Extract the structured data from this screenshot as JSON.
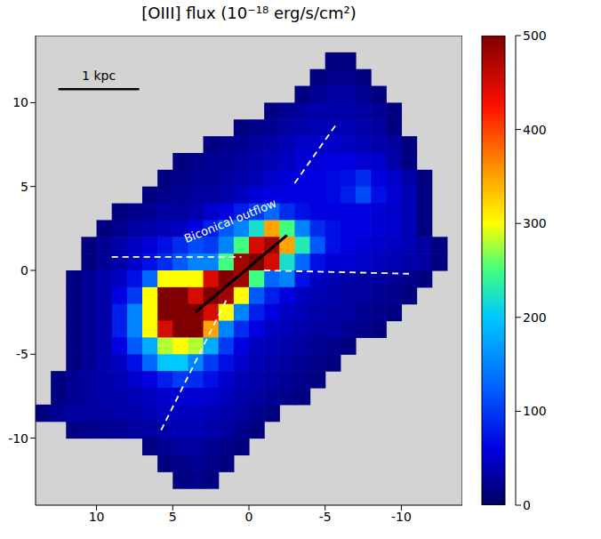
{
  "chart_data": {
    "type": "heatmap",
    "title": "[OIII] flux  (10⁻¹⁸ erg/s/cm²)",
    "xlim": [
      14,
      -14
    ],
    "xticks": [
      10,
      5,
      0,
      -5,
      -10
    ],
    "ylim": [
      -14,
      14
    ],
    "yticks": [
      -10,
      -5,
      0,
      5,
      10
    ],
    "grid": false,
    "cell_x": [
      13.5,
      12.5,
      11.5,
      10.5,
      9.5,
      8.5,
      7.5,
      6.5,
      5.5,
      4.5,
      3.5,
      2.5,
      1.5,
      0.5,
      -0.5,
      -1.5,
      -2.5,
      -3.5,
      -4.5,
      -5.5,
      -6.5,
      -7.5,
      -8.5,
      -9.5,
      -10.5,
      -11.5,
      -12.5,
      -13.5
    ],
    "cell_y": [
      13.5,
      12.5,
      11.5,
      10.5,
      9.5,
      8.5,
      7.5,
      6.5,
      5.5,
      4.5,
      3.5,
      2.5,
      1.5,
      0.5,
      -0.5,
      -1.5,
      -2.5,
      -3.5,
      -4.5,
      -5.5,
      -6.5,
      -7.5,
      -8.5,
      -9.5,
      -10.5,
      -11.5,
      -12.5,
      -13.5
    ],
    "cells": [
      [
        null,
        null,
        null,
        null,
        null,
        null,
        null,
        null,
        null,
        null,
        null,
        null,
        null,
        null,
        null,
        null,
        null,
        null,
        null,
        null,
        null,
        null,
        null,
        null,
        null,
        null,
        null,
        null
      ],
      [
        null,
        null,
        null,
        null,
        null,
        null,
        null,
        null,
        null,
        null,
        null,
        null,
        null,
        null,
        null,
        null,
        null,
        null,
        null,
        15,
        15,
        null,
        null,
        null,
        null,
        null,
        null,
        null
      ],
      [
        null,
        null,
        null,
        null,
        null,
        null,
        null,
        null,
        null,
        null,
        null,
        null,
        null,
        null,
        null,
        null,
        null,
        null,
        15,
        20,
        20,
        15,
        null,
        null,
        null,
        null,
        null,
        null
      ],
      [
        null,
        null,
        null,
        null,
        null,
        null,
        null,
        null,
        null,
        null,
        null,
        null,
        null,
        null,
        null,
        null,
        null,
        15,
        25,
        30,
        30,
        25,
        15,
        null,
        null,
        null,
        null,
        null
      ],
      [
        null,
        null,
        null,
        null,
        null,
        null,
        null,
        null,
        null,
        null,
        null,
        null,
        null,
        null,
        null,
        15,
        25,
        30,
        35,
        35,
        35,
        30,
        25,
        15,
        null,
        null,
        null,
        null
      ],
      [
        null,
        null,
        null,
        null,
        null,
        null,
        null,
        null,
        null,
        null,
        null,
        null,
        null,
        15,
        20,
        25,
        30,
        35,
        40,
        40,
        40,
        35,
        30,
        15,
        null,
        null,
        null,
        null
      ],
      [
        null,
        null,
        null,
        null,
        null,
        null,
        null,
        null,
        null,
        null,
        null,
        15,
        20,
        25,
        30,
        35,
        40,
        50,
        50,
        50,
        45,
        40,
        35,
        30,
        15,
        null,
        null,
        null
      ],
      [
        null,
        null,
        null,
        null,
        null,
        null,
        null,
        null,
        null,
        15,
        20,
        25,
        25,
        30,
        35,
        40,
        45,
        55,
        55,
        60,
        60,
        55,
        50,
        35,
        15,
        null,
        null,
        null
      ],
      [
        null,
        null,
        null,
        null,
        null,
        null,
        null,
        null,
        15,
        20,
        25,
        25,
        30,
        35,
        40,
        50,
        55,
        60,
        60,
        65,
        70,
        90,
        60,
        50,
        35,
        15,
        null,
        null
      ],
      [
        null,
        null,
        null,
        null,
        null,
        null,
        null,
        15,
        20,
        25,
        30,
        30,
        35,
        45,
        55,
        60,
        60,
        60,
        60,
        65,
        80,
        110,
        70,
        55,
        40,
        15,
        null,
        null
      ],
      [
        null,
        null,
        null,
        null,
        null,
        15,
        20,
        25,
        30,
        30,
        35,
        50,
        60,
        80,
        100,
        130,
        90,
        70,
        60,
        60,
        60,
        60,
        55,
        50,
        40,
        15,
        null,
        null
      ],
      [
        null,
        null,
        null,
        null,
        15,
        20,
        30,
        35,
        40,
        45,
        60,
        80,
        120,
        150,
        220,
        350,
        250,
        150,
        90,
        70,
        60,
        60,
        55,
        50,
        40,
        15,
        null,
        null
      ],
      [
        null,
        null,
        null,
        15,
        25,
        35,
        45,
        55,
        70,
        90,
        110,
        100,
        150,
        250,
        450,
        480,
        350,
        230,
        120,
        70,
        60,
        55,
        50,
        45,
        40,
        30,
        15,
        null
      ],
      [
        null,
        null,
        null,
        15,
        25,
        35,
        50,
        70,
        90,
        120,
        150,
        150,
        250,
        480,
        500,
        450,
        220,
        130,
        70,
        55,
        55,
        50,
        45,
        40,
        35,
        30,
        15,
        null
      ],
      [
        null,
        null,
        15,
        25,
        35,
        45,
        70,
        130,
        300,
        300,
        300,
        450,
        500,
        480,
        250,
        130,
        150,
        70,
        45,
        40,
        35,
        30,
        30,
        25,
        20,
        15,
        null,
        null
      ],
      [
        null,
        null,
        15,
        25,
        35,
        60,
        100,
        300,
        500,
        500,
        450,
        500,
        480,
        300,
        120,
        80,
        60,
        45,
        40,
        35,
        30,
        30,
        25,
        20,
        15,
        null,
        null,
        null
      ],
      [
        null,
        null,
        15,
        25,
        35,
        80,
        150,
        300,
        500,
        500,
        500,
        450,
        300,
        150,
        80,
        60,
        45,
        40,
        35,
        30,
        30,
        25,
        20,
        15,
        null,
        null,
        null,
        null
      ],
      [
        null,
        null,
        15,
        25,
        35,
        80,
        150,
        300,
        450,
        500,
        500,
        350,
        150,
        90,
        60,
        45,
        40,
        35,
        30,
        30,
        25,
        20,
        15,
        null,
        null,
        null,
        null,
        null
      ],
      [
        null,
        null,
        15,
        25,
        35,
        60,
        120,
        180,
        280,
        300,
        280,
        180,
        100,
        60,
        45,
        40,
        35,
        30,
        25,
        20,
        15,
        null,
        null,
        null,
        null,
        null,
        null,
        null
      ],
      [
        null,
        null,
        15,
        25,
        35,
        45,
        70,
        130,
        200,
        200,
        150,
        100,
        70,
        50,
        40,
        35,
        30,
        25,
        20,
        15,
        null,
        null,
        null,
        null,
        null,
        null,
        null,
        null
      ],
      [
        null,
        15,
        25,
        30,
        35,
        40,
        50,
        60,
        80,
        100,
        90,
        70,
        50,
        40,
        35,
        30,
        25,
        20,
        15,
        null,
        null,
        null,
        null,
        null,
        null,
        null,
        null,
        null
      ],
      [
        null,
        15,
        25,
        30,
        35,
        35,
        40,
        45,
        50,
        55,
        55,
        50,
        45,
        35,
        30,
        25,
        20,
        15,
        null,
        null,
        null,
        null,
        null,
        null,
        null,
        null,
        null,
        null
      ],
      [
        15,
        25,
        30,
        30,
        30,
        35,
        35,
        40,
        45,
        45,
        45,
        40,
        35,
        30,
        20,
        15,
        null,
        null,
        null,
        null,
        null,
        null,
        null,
        null,
        null,
        null,
        null,
        null
      ],
      [
        null,
        null,
        15,
        20,
        25,
        25,
        30,
        30,
        35,
        40,
        40,
        35,
        30,
        20,
        15,
        null,
        null,
        null,
        null,
        null,
        null,
        null,
        null,
        null,
        null,
        null,
        null,
        null
      ],
      [
        null,
        null,
        null,
        null,
        null,
        null,
        null,
        15,
        25,
        30,
        30,
        25,
        20,
        15,
        null,
        null,
        null,
        null,
        null,
        null,
        null,
        null,
        null,
        null,
        null,
        null,
        null,
        null
      ],
      [
        null,
        null,
        null,
        null,
        null,
        null,
        null,
        null,
        15,
        20,
        25,
        20,
        15,
        null,
        null,
        null,
        null,
        null,
        null,
        null,
        null,
        null,
        null,
        null,
        null,
        null,
        null,
        null
      ],
      [
        null,
        null,
        null,
        null,
        null,
        null,
        null,
        null,
        null,
        15,
        20,
        15,
        null,
        null,
        null,
        null,
        null,
        null,
        null,
        null,
        null,
        null,
        null,
        null,
        null,
        null,
        null,
        null
      ],
      [
        null,
        null,
        null,
        null,
        null,
        null,
        null,
        null,
        null,
        null,
        null,
        null,
        null,
        null,
        null,
        null,
        null,
        null,
        null,
        null,
        null,
        null,
        null,
        null,
        null,
        null,
        null,
        null
      ]
    ],
    "colorbar": {
      "range": [
        0,
        500
      ],
      "ticks": [
        0,
        100,
        200,
        300,
        400,
        500
      ]
    },
    "annotations": [
      {
        "text": "Biconical outflow",
        "x": 1.2,
        "y": 2.9,
        "color": "#ffffff"
      }
    ],
    "scale_bar": {
      "label": "1 kpc",
      "x": [
        12.5,
        7.2
      ],
      "y": 10.8,
      "color": "#000000"
    },
    "lines": [
      {
        "x": [
          9,
          0.5
        ],
        "y": [
          0.8,
          0.8
        ],
        "color": "#ffffff",
        "line_style": "dashed"
      },
      {
        "x": [
          -1,
          -10.5
        ],
        "y": [
          0,
          -0.2
        ],
        "color": "#ffffff",
        "line_style": "dashed"
      },
      {
        "x": [
          -3,
          -5.8
        ],
        "y": [
          5.2,
          8.8
        ],
        "color": "#ffffff",
        "line_style": "dashed"
      },
      {
        "x": [
          1.5,
          5.8
        ],
        "y": [
          -1.8,
          -9.6
        ],
        "color": "#ffffff",
        "line_style": "dashed"
      },
      {
        "x": [
          3.5,
          -2.5
        ],
        "y": [
          -2.5,
          2.1
        ],
        "color": "#000000",
        "line_style": "solid"
      }
    ]
  }
}
